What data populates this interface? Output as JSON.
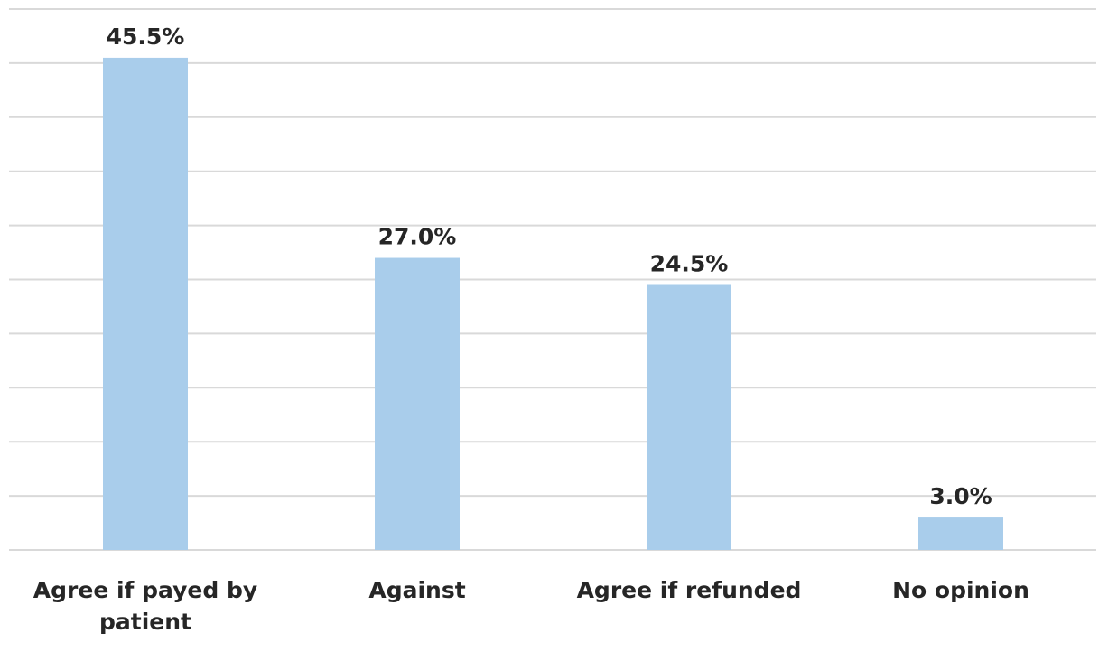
{
  "chart_data": {
    "type": "bar",
    "categories": [
      "Agree if payed by patient",
      "Against",
      "Agree if refunded",
      "No opinion"
    ],
    "category_lines": [
      [
        "Agree if payed by",
        "patient"
      ],
      [
        "Against"
      ],
      [
        "Agree if refunded"
      ],
      [
        "No opinion"
      ]
    ],
    "values": [
      45.5,
      27.0,
      24.5,
      3.0
    ],
    "data_labels": [
      "45.5%",
      "27.0%",
      "24.5%",
      "3.0%"
    ],
    "ylim": [
      0,
      50
    ],
    "gridlines": true,
    "bar_color": "#a9cdeb",
    "grid_color": "#d9d9d9",
    "text_color": "#262626"
  }
}
